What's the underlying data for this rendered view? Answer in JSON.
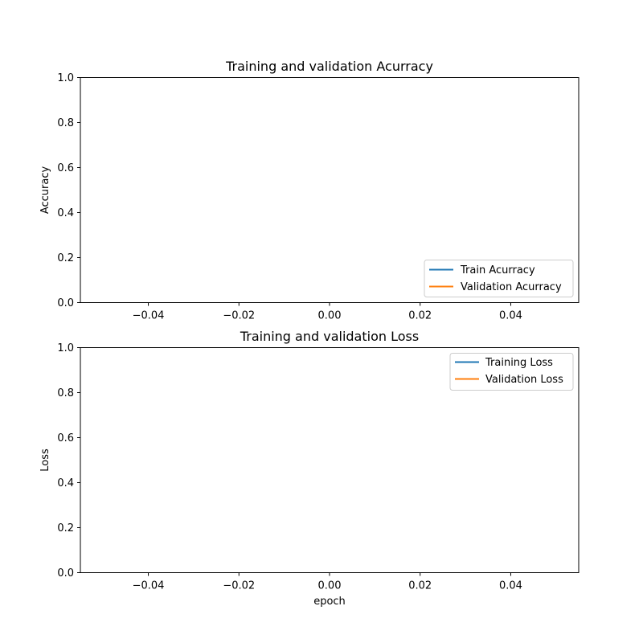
{
  "chart_data": [
    {
      "type": "line",
      "title": "Training and validation Acurracy",
      "xlabel": "",
      "ylabel": "Accuracy",
      "xlim": [
        -0.055,
        0.055
      ],
      "ylim": [
        0,
        1
      ],
      "x_ticks": [
        -0.04,
        -0.02,
        0.0,
        0.02,
        0.04
      ],
      "x_tick_labels": [
        "−0.04",
        "−0.02",
        "0.00",
        "0.02",
        "0.04"
      ],
      "y_ticks": [
        0,
        0.2,
        0.4,
        0.6,
        0.8,
        1.0
      ],
      "y_tick_labels": [
        "0.0",
        "0.2",
        "0.4",
        "0.6",
        "0.8",
        "1.0"
      ],
      "grid": false,
      "legend_position": "lower-right",
      "series": [
        {
          "name": "Train Acurracy",
          "color": "#1f77b4",
          "x": [],
          "y": []
        },
        {
          "name": "Validation Acurracy",
          "color": "#ff7f0e",
          "x": [],
          "y": []
        }
      ]
    },
    {
      "type": "line",
      "title": "Training and validation Loss",
      "xlabel": "epoch",
      "ylabel": "Loss",
      "xlim": [
        -0.055,
        0.055
      ],
      "ylim": [
        0,
        1
      ],
      "x_ticks": [
        -0.04,
        -0.02,
        0.0,
        0.02,
        0.04
      ],
      "x_tick_labels": [
        "−0.04",
        "−0.02",
        "0.00",
        "0.02",
        "0.04"
      ],
      "y_ticks": [
        0,
        0.2,
        0.4,
        0.6,
        0.8,
        1.0
      ],
      "y_tick_labels": [
        "0.0",
        "0.2",
        "0.4",
        "0.6",
        "0.8",
        "1.0"
      ],
      "grid": false,
      "legend_position": "upper-right",
      "series": [
        {
          "name": "Training Loss",
          "color": "#1f77b4",
          "x": [],
          "y": []
        },
        {
          "name": "Validation Loss",
          "color": "#ff7f0e",
          "x": [],
          "y": []
        }
      ]
    }
  ]
}
